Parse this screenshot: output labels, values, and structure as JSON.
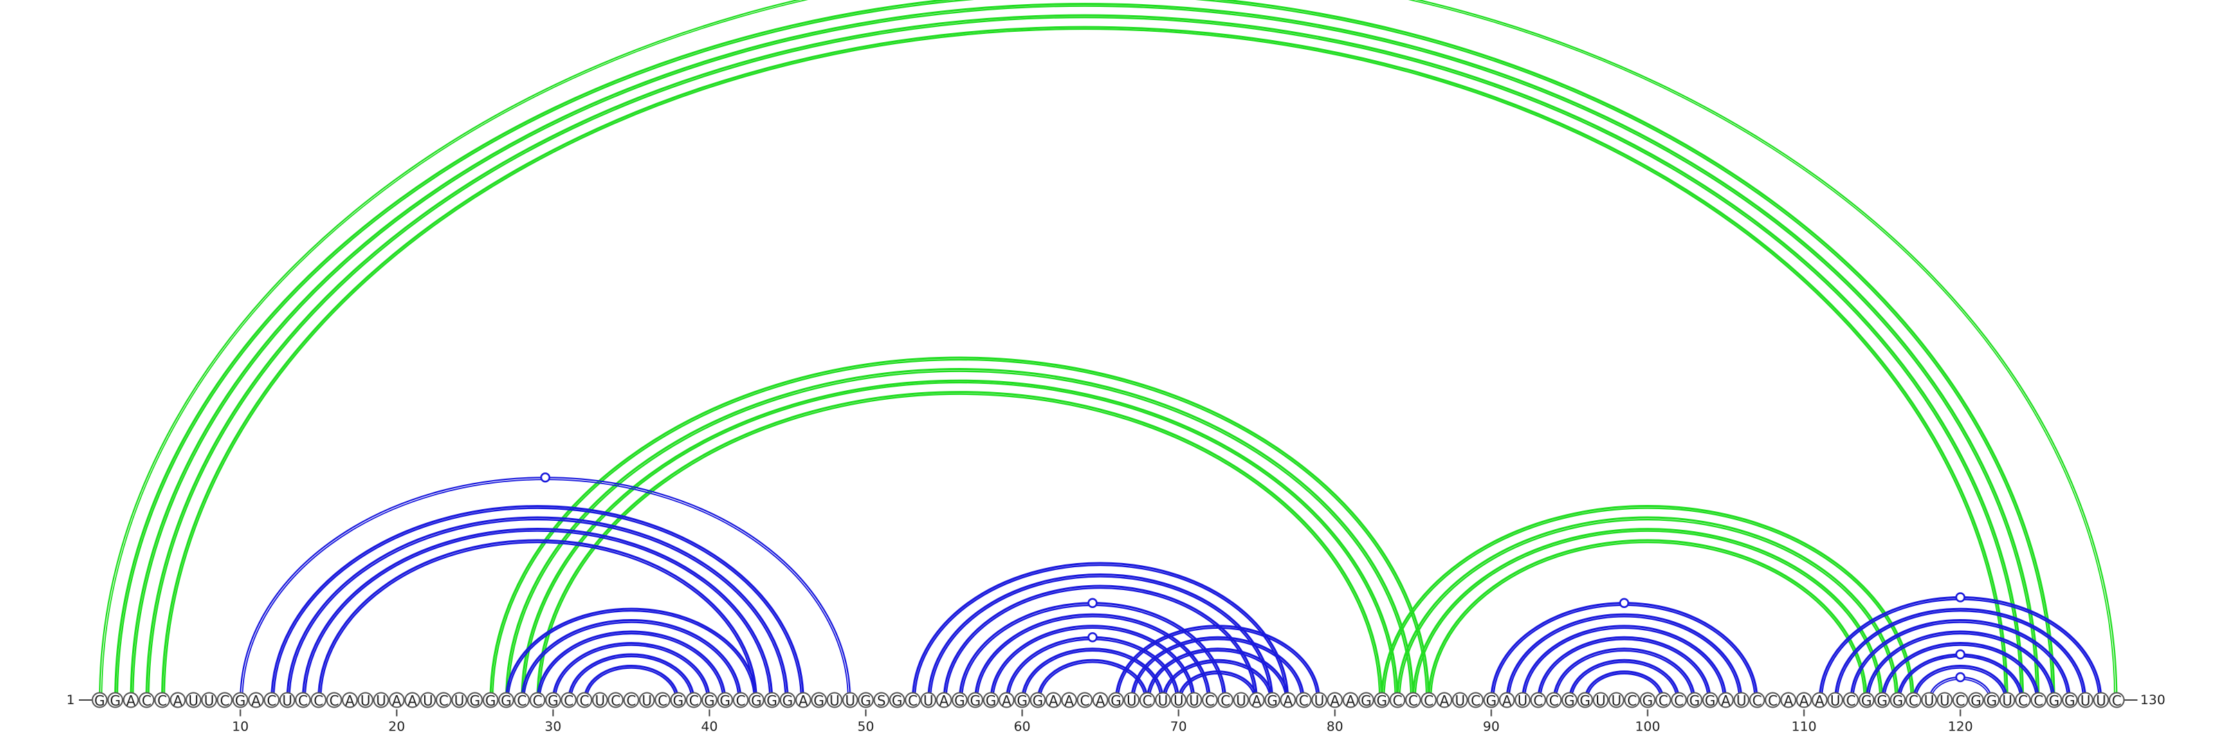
{
  "sequence": "GGACCAUUCGACUCCCAUUAAUCUGGGCCGCCUCCUCGCGGCGGGAGUUGSGCUAGGGAGGAACAGUCUUUCCUAGACUAAGGCCCAUCGAUCCGGUUCGCCGGAUCCAAAUCGGGCUUCGGUCCGGUUC",
  "start_label": "1",
  "end_label": "130",
  "ticks": [
    10,
    20,
    30,
    40,
    50,
    60,
    70,
    80,
    90,
    100,
    110,
    120
  ],
  "colors": {
    "blue": "#1a1adc",
    "green": "#22dd22"
  },
  "helices": [
    {
      "color": "green",
      "i": 1,
      "j": 130,
      "n": 1,
      "marker": true
    },
    {
      "color": "green",
      "i": 2,
      "j": 126,
      "n": 4,
      "marker": false
    },
    {
      "color": "green",
      "i": 26,
      "j": 86,
      "n": 4,
      "marker": false
    },
    {
      "color": "green",
      "i": 83,
      "j": 117,
      "n": 4,
      "marker": false
    },
    {
      "color": "blue",
      "i": 10,
      "j": 49,
      "n": 1,
      "marker": true
    },
    {
      "color": "blue",
      "i": 12,
      "j": 46,
      "n": 4,
      "marker": false
    },
    {
      "color": "blue",
      "i": 27,
      "j": 43,
      "n": 6,
      "marker": false
    },
    {
      "color": "blue",
      "i": 53,
      "j": 77,
      "n": 3,
      "marker": false
    },
    {
      "color": "blue",
      "i": 56,
      "j": 73,
      "n": 3,
      "marker": true
    },
    {
      "color": "blue",
      "i": 59,
      "j": 70,
      "n": 3,
      "marker": true
    },
    {
      "color": "blue",
      "i": 66,
      "j": 79,
      "n": 5,
      "marker": false
    },
    {
      "color": "blue",
      "i": 90,
      "j": 107,
      "n": 7,
      "marker": true
    },
    {
      "color": "blue",
      "i": 111,
      "j": 129,
      "n": 2,
      "marker": true
    },
    {
      "color": "blue",
      "i": 113,
      "j": 127,
      "n": 3,
      "marker": false
    },
    {
      "color": "blue",
      "i": 116,
      "j": 124,
      "n": 2,
      "marker": true
    },
    {
      "color": "blue",
      "i": 118,
      "j": 122,
      "n": 1,
      "marker": true
    }
  ]
}
